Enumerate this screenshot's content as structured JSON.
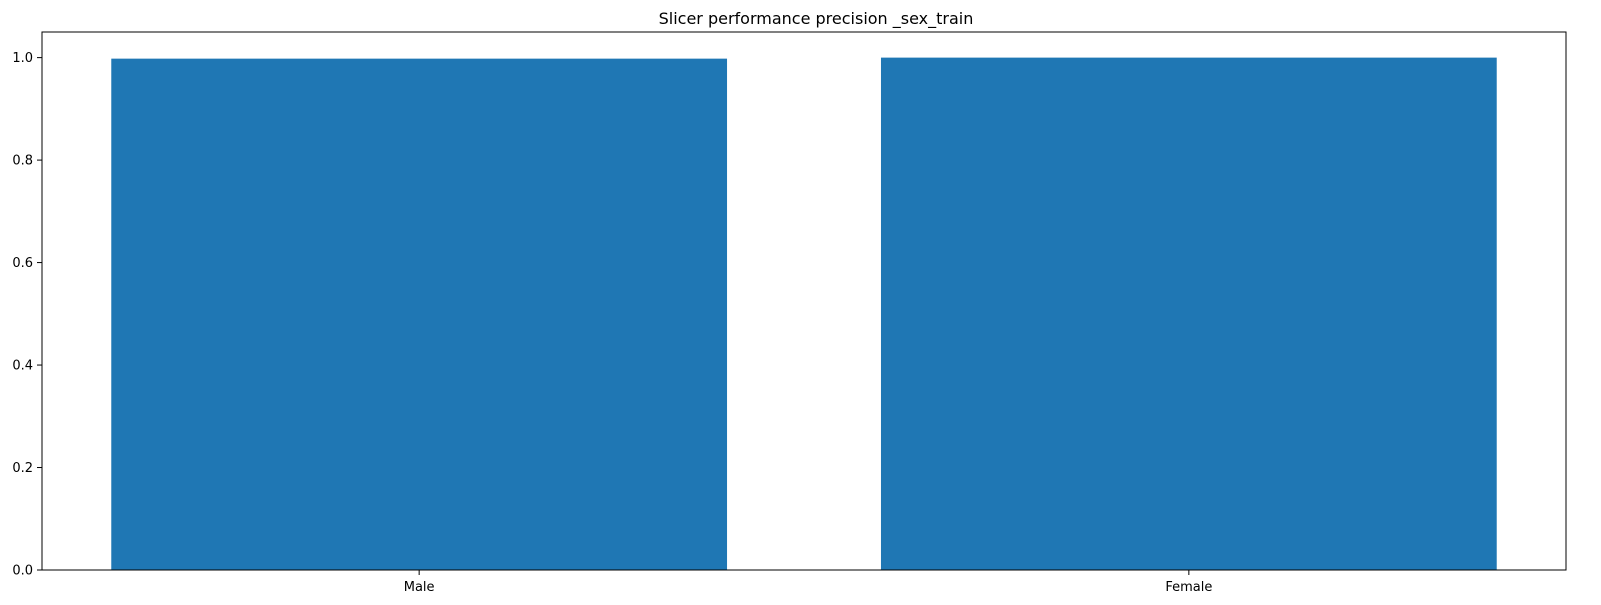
{
  "chart_data": {
    "type": "bar",
    "title": "Slicer performance precision _sex_train",
    "categories": [
      "Male",
      "Female"
    ],
    "values": [
      0.998,
      1.0
    ],
    "xlabel": "",
    "ylabel": "",
    "ylim": [
      0,
      1.05
    ],
    "yticks": [
      0.0,
      0.2,
      0.4,
      0.6,
      0.8,
      1.0
    ],
    "ytick_labels": [
      "0.0",
      "0.2",
      "0.4",
      "0.6",
      "0.8",
      "1.0"
    ],
    "bar_color": "#1f77b4",
    "grid": false,
    "legend": "none"
  }
}
